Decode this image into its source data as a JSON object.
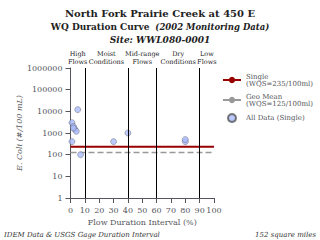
{
  "chart_data": {
    "type": "scatter",
    "title": "North Fork Prairie Creek at 450 E",
    "subtitle_lines": [
      [
        "WQ Duration Curve",
        "  (2002 Monitoring Data)"
      ],
      [
        "Site: WWL080-0001"
      ]
    ],
    "xlabel": "Flow Duration Interval (%)",
    "ylabel": "E. Coli (#/100 mL)",
    "xlim": [
      0,
      100
    ],
    "ylim": [
      1,
      1000000
    ],
    "xticks": [
      0,
      10,
      20,
      30,
      40,
      50,
      60,
      70,
      80,
      90,
      100
    ],
    "yticks": [
      1,
      10,
      100,
      1000,
      10000,
      100000,
      1000000
    ],
    "log": "y",
    "grid": false,
    "legend": "right",
    "vlines": {
      "values": [
        10,
        40,
        60,
        90
      ],
      "color": "#000000"
    },
    "annotations": [
      {
        "text": "High\nFlows",
        "x": 5
      },
      {
        "text": "Moist\nConditions",
        "x": 25
      },
      {
        "text": "Mid-range\nFlows",
        "x": 50
      },
      {
        "text": "Dry\nConditions",
        "x": 75
      },
      {
        "text": "Low\nFlows",
        "x": 95
      }
    ],
    "footer": [
      "IDEM Data & USGS Gage Duration Interval",
      "152 square miles"
    ],
    "series": [
      {
        "name": "Single\n(WQS=235/100ml)",
        "type": "hline",
        "value": 235,
        "color": "#990000",
        "line_style": "solid"
      },
      {
        "name": "Geo Mean\n(WQS=125/100ml)",
        "type": "hline",
        "value": 125,
        "color": "#999999",
        "line_style": "dashed"
      },
      {
        "name": "All Data (Single)",
        "type": "scatter",
        "marker": "circle",
        "color": "#aabbff",
        "x": [
          1,
          2,
          3,
          4,
          5,
          7,
          1,
          2,
          30,
          40,
          80,
          80
        ],
        "values": [
          3000,
          2000,
          1500,
          1200,
          12000,
          100,
          400,
          1700,
          400,
          1000,
          400,
          500
        ]
      }
    ]
  }
}
